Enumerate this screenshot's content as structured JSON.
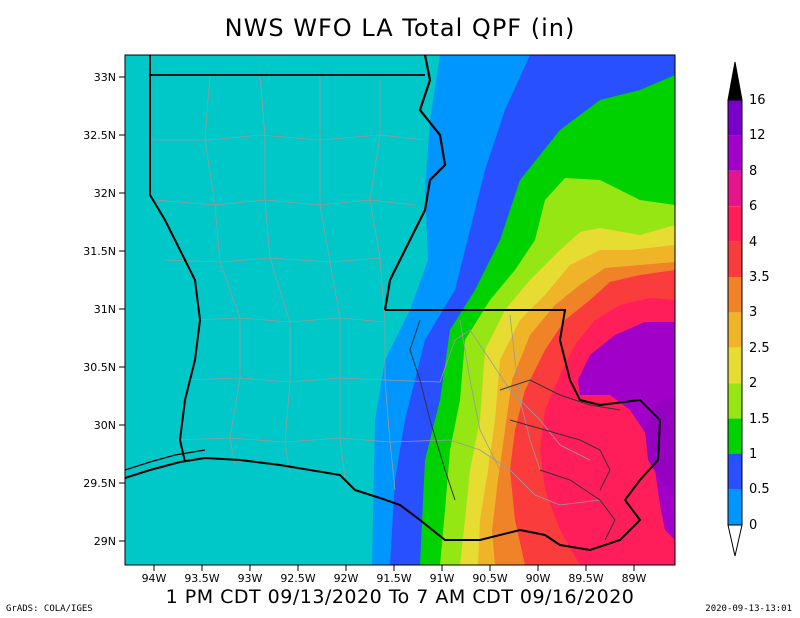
{
  "title": "NWS WFO LA Total QPF (in)",
  "subtitle": "1 PM CDT 09/13/2020 To 7 AM CDT 09/16/2020",
  "credit": "GrADS: COLA/IGES",
  "timestamp": "2020-09-13-13:01",
  "map": {
    "lat_labels": [
      "33N",
      "32.5N",
      "32N",
      "31.5N",
      "31N",
      "30.5N",
      "30N",
      "29.5N",
      "29N"
    ],
    "lon_labels": [
      "94W",
      "93.5W",
      "93W",
      "92.5W",
      "92W",
      "91.5W",
      "91W",
      "90.5W",
      "90W",
      "89.5W",
      "89W"
    ]
  },
  "colorbar": {
    "labels": [
      "0",
      "0.5",
      "1",
      "1.5",
      "2",
      "2.5",
      "3",
      "3.5",
      "4",
      "6",
      "8",
      "12",
      "16"
    ],
    "colors": [
      "#00c8c8",
      "#0096ff",
      "#2850ff",
      "#00d200",
      "#96e614",
      "#e6dc32",
      "#f0b428",
      "#f08228",
      "#fa3c3c",
      "#ff1e5a",
      "#e6148c",
      "#a000c8",
      "#7800c8"
    ],
    "under_color": "#ffffff",
    "over_color": "#000000"
  }
}
